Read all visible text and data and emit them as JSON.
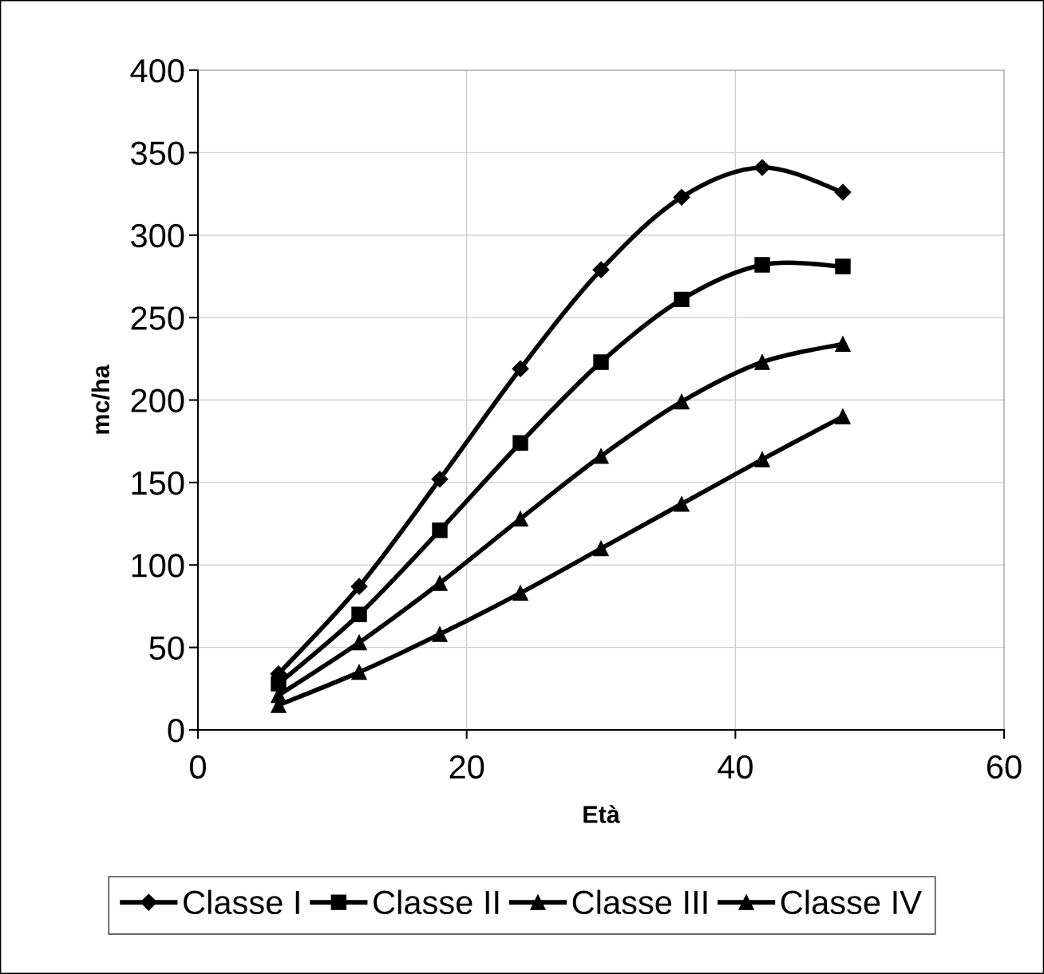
{
  "chart_data": {
    "type": "line",
    "xlabel": "Età",
    "ylabel": "mc/ha",
    "x": [
      6,
      12,
      18,
      24,
      30,
      36,
      42,
      48
    ],
    "series": [
      {
        "name": "Classe I",
        "color": "#000000",
        "marker": "diamond",
        "values": [
          34,
          87,
          152,
          219,
          279,
          323,
          341,
          326
        ]
      },
      {
        "name": "Classe II",
        "color": "#000000",
        "marker": "square",
        "values": [
          28,
          70,
          121,
          174,
          223,
          261,
          282,
          281
        ]
      },
      {
        "name": "Classe III",
        "color": "#000000",
        "marker": "triangle",
        "values": [
          21,
          53,
          89,
          128,
          166,
          199,
          223,
          234
        ]
      },
      {
        "name": "Classe IV",
        "color": "#000000",
        "marker": "triangle",
        "values": [
          15,
          35,
          58,
          83,
          110,
          137,
          164,
          190
        ]
      }
    ],
    "xlim": [
      0,
      60
    ],
    "xticks": [
      0,
      20,
      40,
      60
    ],
    "ylim": [
      0,
      400
    ],
    "yticks": [
      0,
      50,
      100,
      150,
      200,
      250,
      300,
      350,
      400
    ],
    "grid": true,
    "legend": "bottom",
    "line_style": "solid"
  }
}
